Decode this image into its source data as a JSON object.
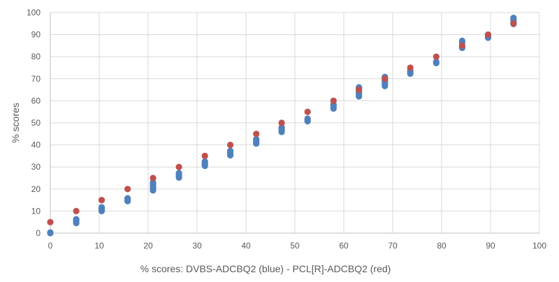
{
  "chart_data": {
    "type": "scatter",
    "title": "",
    "xlabel": "% scores: DVBS-ADCBQ2 (blue) - PCL[R]-ADCBQ2 (red)",
    "ylabel": "% scores",
    "xlim": [
      0,
      100
    ],
    "ylim": [
      0,
      100
    ],
    "x_ticks": [
      "0",
      "10",
      "20",
      "30",
      "40",
      "50",
      "60",
      "70",
      "80",
      "90",
      "100"
    ],
    "y_ticks": [
      "0",
      "10",
      "20",
      "30",
      "40",
      "50",
      "60",
      "70",
      "80",
      "90",
      "100"
    ],
    "grid": "vertical and horizontal",
    "legend": "none",
    "colors": {
      "blue": "#4f81bd",
      "red": "#c0504d",
      "grid": "#d9d9d9",
      "text": "#595959"
    },
    "series": [
      {
        "color": "#4f81bd",
        "points": [
          [
            0,
            0
          ],
          [
            0,
            0.3
          ],
          [
            5.3,
            4.6
          ],
          [
            5.3,
            5.2
          ],
          [
            5.3,
            5.8
          ],
          [
            5.3,
            6.3
          ],
          [
            10.5,
            10
          ],
          [
            10.5,
            10.6
          ],
          [
            10.5,
            11.2
          ],
          [
            10.5,
            11.7
          ],
          [
            15.8,
            14.5
          ],
          [
            15.8,
            15.2
          ],
          [
            15.8,
            15.8
          ],
          [
            21,
            19.4
          ],
          [
            21,
            20.1
          ],
          [
            21,
            20.8
          ],
          [
            21,
            21.5
          ],
          [
            21,
            22.3
          ],
          [
            21,
            23
          ],
          [
            26.3,
            25.2
          ],
          [
            26.3,
            25.9
          ],
          [
            26.3,
            26.6
          ],
          [
            26.3,
            27.2
          ],
          [
            31.6,
            30.5
          ],
          [
            31.6,
            31.2
          ],
          [
            31.6,
            31.9
          ],
          [
            31.6,
            32.5
          ],
          [
            36.8,
            35.3
          ],
          [
            36.8,
            36
          ],
          [
            36.8,
            36.7
          ],
          [
            36.8,
            37.3
          ],
          [
            42.1,
            40.6
          ],
          [
            42.1,
            41.3
          ],
          [
            42.1,
            42
          ],
          [
            42.1,
            42.6
          ],
          [
            47.3,
            45.9
          ],
          [
            47.3,
            46.6
          ],
          [
            47.3,
            47.3
          ],
          [
            47.3,
            47.9
          ],
          [
            52.6,
            50.7
          ],
          [
            52.6,
            51.3
          ],
          [
            52.6,
            51.9
          ],
          [
            57.9,
            56.5
          ],
          [
            57.9,
            57.1
          ],
          [
            57.9,
            57.8
          ],
          [
            57.9,
            58.3
          ],
          [
            63.1,
            62
          ],
          [
            63.1,
            62.7
          ],
          [
            63.1,
            63.4
          ],
          [
            63.1,
            64.1
          ],
          [
            63.1,
            64.8
          ],
          [
            63.1,
            65.5
          ],
          [
            63.1,
            66.1
          ],
          [
            68.4,
            66.7
          ],
          [
            68.4,
            67.4
          ],
          [
            68.4,
            68.1
          ],
          [
            68.4,
            68.8
          ],
          [
            68.4,
            69.5
          ],
          [
            68.4,
            70.2
          ],
          [
            68.4,
            70.8
          ],
          [
            73.6,
            72.3
          ],
          [
            73.6,
            72.9
          ],
          [
            73.6,
            73.6
          ],
          [
            78.9,
            77.1
          ],
          [
            78.9,
            77.7
          ],
          [
            84.2,
            84
          ],
          [
            84.2,
            84.6
          ],
          [
            84.2,
            86.5
          ],
          [
            84.2,
            87.2
          ],
          [
            89.5,
            88.6
          ],
          [
            89.5,
            89.2
          ],
          [
            94.7,
            94.8
          ],
          [
            94.7,
            95.5
          ],
          [
            94.7,
            96.3
          ],
          [
            94.7,
            97
          ],
          [
            94.7,
            97.6
          ]
        ]
      },
      {
        "color": "#c0504d",
        "points": [
          [
            0,
            5
          ],
          [
            5.3,
            10
          ],
          [
            10.5,
            15
          ],
          [
            15.8,
            20
          ],
          [
            21,
            25
          ],
          [
            26.3,
            30
          ],
          [
            31.6,
            35
          ],
          [
            36.8,
            40
          ],
          [
            42.1,
            45
          ],
          [
            47.3,
            50
          ],
          [
            52.6,
            55
          ],
          [
            57.9,
            60
          ],
          [
            63.1,
            65
          ],
          [
            68.4,
            70
          ],
          [
            73.6,
            75
          ],
          [
            78.9,
            80
          ],
          [
            84.2,
            85
          ],
          [
            89.5,
            90
          ],
          [
            94.7,
            95
          ]
        ]
      }
    ]
  }
}
